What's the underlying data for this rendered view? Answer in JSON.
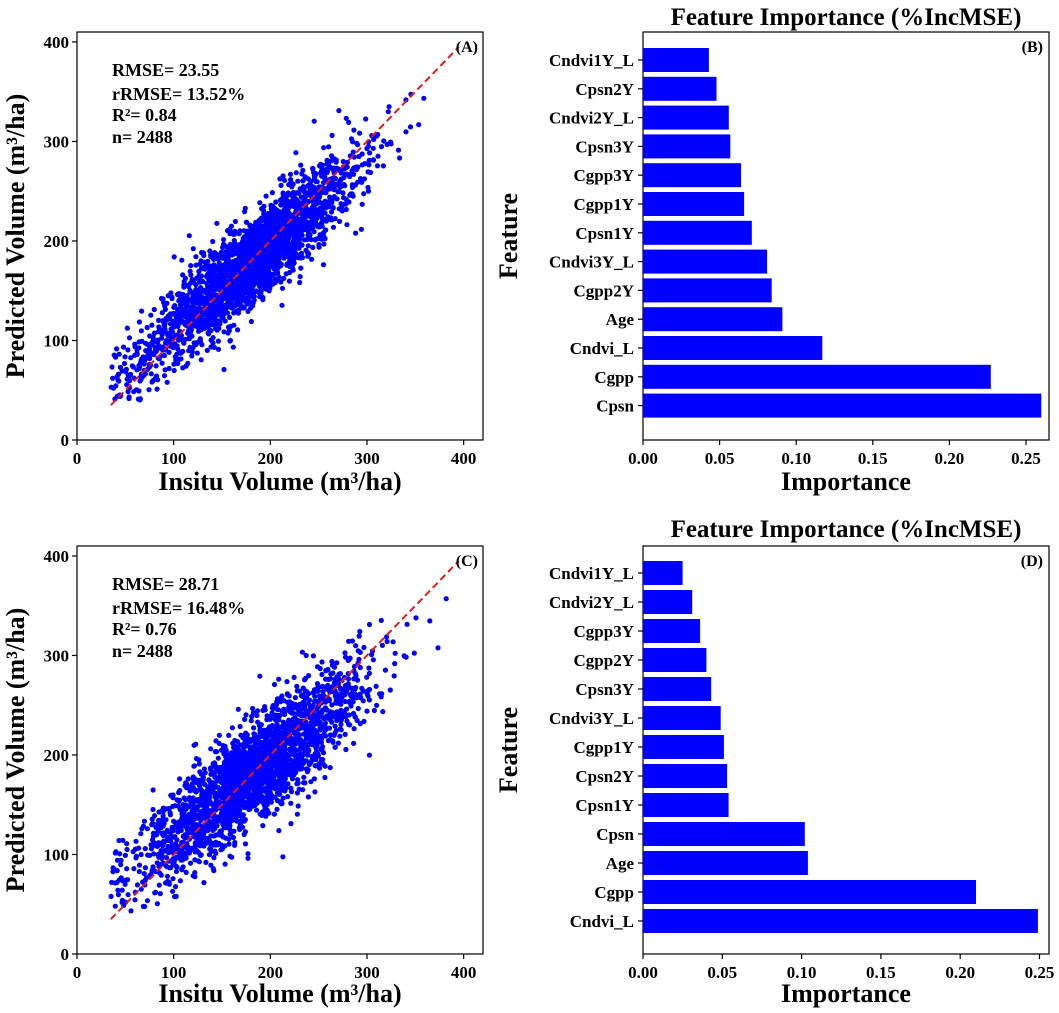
{
  "chart_data": [
    {
      "type": "scatter",
      "panel": "(A)",
      "xlabel": "Insitu Volume (m³/ha)",
      "ylabel": "Predicted Volume (m³/ha)",
      "xlim": [
        0,
        420
      ],
      "ylim": [
        0,
        410
      ],
      "xticks": [
        0,
        100,
        200,
        300,
        400
      ],
      "yticks": [
        0,
        100,
        200,
        300,
        400
      ],
      "stats": [
        "RMSE= 23.55",
        "rRMSE= 13.52%",
        "R²= 0.84",
        "n= 2488"
      ],
      "point_color": "#0000ff",
      "line_color": "#e41a1c",
      "n": 2488,
      "one_to_one": [
        [
          35,
          35
        ],
        [
          395,
          395
        ]
      ],
      "x_range": [
        35,
        392
      ],
      "fit": {
        "slope": 0.84,
        "intercept": 28,
        "noise_sd": 22
      }
    },
    {
      "type": "bar",
      "orientation": "horizontal",
      "panel": "(B)",
      "title": "Feature Importance (%IncMSE)",
      "xlabel": "Importance",
      "ylabel": "Feature",
      "xlim": [
        0,
        0.265
      ],
      "xticks": [
        "0.00",
        "0.05",
        "0.10",
        "0.15",
        "0.20",
        "0.25"
      ],
      "bar_color": "#0000ff",
      "categories": [
        "Cndvi1Y_L",
        "Cpsn2Y",
        "Cndvi2Y_L",
        "Cpsn3Y",
        "Cgpp3Y",
        "Cgpp1Y",
        "Cpsn1Y",
        "Cndvi3Y_L",
        "Cgpp2Y",
        "Age",
        "Cndvi_L",
        "Cgpp",
        "Cpsn"
      ],
      "values": [
        0.043,
        0.048,
        0.056,
        0.057,
        0.064,
        0.066,
        0.071,
        0.081,
        0.084,
        0.091,
        0.117,
        0.227,
        0.26
      ]
    },
    {
      "type": "scatter",
      "panel": "(C)",
      "xlabel": "Insitu Volume (m³/ha)",
      "ylabel": "Predicted Volume (m³/ha)",
      "xlim": [
        0,
        420
      ],
      "ylim": [
        0,
        410
      ],
      "xticks": [
        0,
        100,
        200,
        300,
        400
      ],
      "yticks": [
        0,
        100,
        200,
        300,
        400
      ],
      "stats": [
        "RMSE= 28.71",
        "rRMSE= 16.48%",
        "R²= 0.76",
        "n= 2488"
      ],
      "point_color": "#0000ff",
      "line_color": "#e41a1c",
      "n": 2488,
      "one_to_one": [
        [
          35,
          35
        ],
        [
          395,
          395
        ]
      ],
      "x_range": [
        35,
        392
      ],
      "fit": {
        "slope": 0.78,
        "intercept": 40,
        "noise_sd": 26
      }
    },
    {
      "type": "bar",
      "orientation": "horizontal",
      "panel": "(D)",
      "title": "Feature Importance (%IncMSE)",
      "xlabel": "Importance",
      "ylabel": "Feature",
      "xlim": [
        0,
        0.256
      ],
      "xticks": [
        "0.00",
        "0.05",
        "0.10",
        "0.15",
        "0.20",
        "0.25"
      ],
      "bar_color": "#0000ff",
      "categories": [
        "Cndvi1Y_L",
        "Cndvi2Y_L",
        "Cgpp3Y",
        "Cgpp2Y",
        "Cpsn3Y",
        "Cndvi3Y_L",
        "Cgpp1Y",
        "Cpsn2Y",
        "Cpsn1Y",
        "Cpsn",
        "Age",
        "Cgpp",
        "Cndvi_L"
      ],
      "values": [
        0.025,
        0.031,
        0.036,
        0.04,
        0.043,
        0.049,
        0.051,
        0.053,
        0.054,
        0.102,
        0.104,
        0.21,
        0.249
      ]
    }
  ]
}
